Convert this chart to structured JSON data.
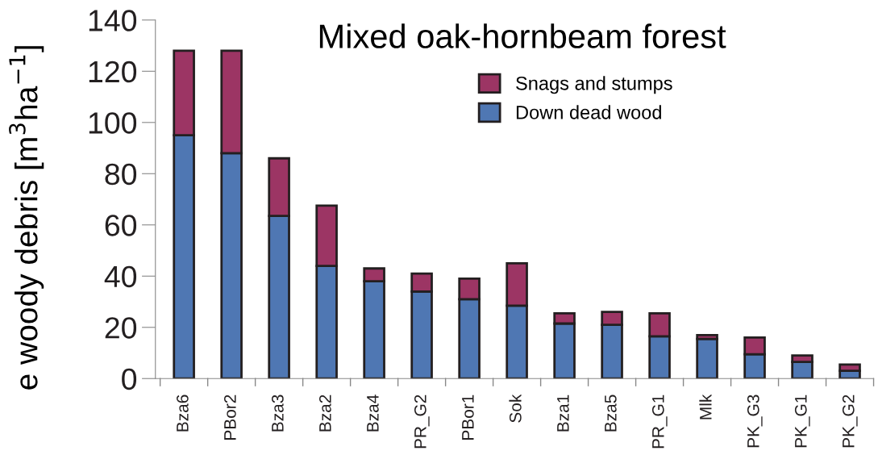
{
  "chart_data": {
    "type": "bar",
    "stacked": true,
    "title": "Mixed oak-hornbeam forest",
    "ylabel": "e woody debris [m$^{3}$ha$^{−1}$]",
    "categories": [
      "Bza6",
      "PBor2",
      "Bza3",
      "Bza2",
      "Bza4",
      "PR_G2",
      "PBor1",
      "Sok",
      "Bza1",
      "Bza5",
      "PR_G1",
      "Mlk",
      "PK_G3",
      "PK_G1",
      "PK_G2"
    ],
    "series": [
      {
        "name": "Down dead wood",
        "color": "#4f77b3",
        "values": [
          95,
          88,
          63.5,
          44,
          38,
          34,
          31,
          28.5,
          21.5,
          21,
          16.5,
          15.5,
          9.5,
          6.5,
          3
        ]
      },
      {
        "name": "Snags and stumps",
        "color": "#9c3564",
        "values": [
          33,
          40,
          22.5,
          23.5,
          5,
          7,
          8,
          16.5,
          4,
          5,
          9,
          1.5,
          6.5,
          2.5,
          2.5
        ]
      }
    ],
    "ylim": [
      0,
      140
    ],
    "yticks": [
      0,
      20,
      40,
      60,
      80,
      100,
      120,
      140
    ],
    "grid": false,
    "legend": "top right"
  }
}
